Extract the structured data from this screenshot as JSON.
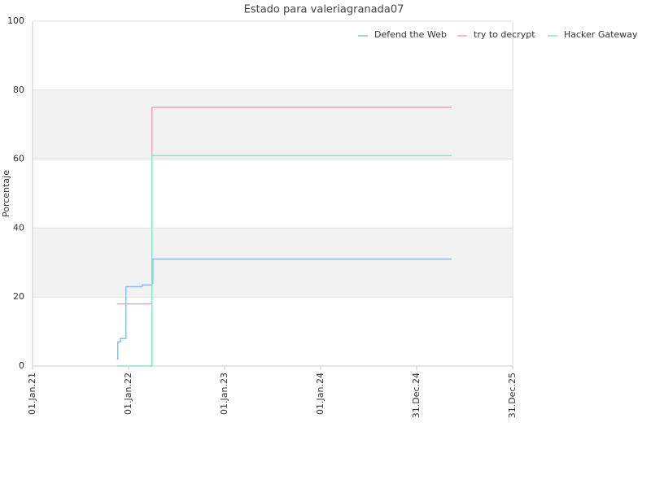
{
  "chart_data": {
    "type": "line",
    "step": "after",
    "title": "Estado para valeriagranada07",
    "y_label": "Porcentaje",
    "xlim": [
      "2021-01-01",
      "2025-12-31"
    ],
    "xticks": [
      {
        "value": "2021-01-01",
        "label": "01.Jan.21"
      },
      {
        "value": "2022-01-01",
        "label": "01.Jan.22"
      },
      {
        "value": "2023-01-01",
        "label": "01.Jan.23"
      },
      {
        "value": "2024-01-01",
        "label": "01.Jan.24"
      },
      {
        "value": "2024-12-31",
        "label": "31.Dec.24"
      },
      {
        "value": "2025-12-31",
        "label": "31.Dec.25"
      }
    ],
    "ylim": [
      0,
      100
    ],
    "yticks": [
      0,
      20,
      40,
      60,
      80,
      100
    ],
    "grid": true,
    "alternate_bands": true,
    "legend": "top-right",
    "series": [
      {
        "name": "Defend the Web",
        "color": "#8cbbe6",
        "x": [
          "2021-11-18",
          "2021-11-21",
          "2021-12-01",
          "2021-12-22",
          "2022-02-22",
          "2022-03-31",
          "2022-04-03",
          "2025-05-13"
        ],
        "values": [
          2,
          7,
          8,
          23,
          23.5,
          24,
          31,
          31
        ]
      },
      {
        "name": "try to decrypt",
        "color": "#f2a2c6",
        "x": [
          "2021-11-18",
          "2022-03-31",
          "2025-05-13"
        ],
        "values": [
          18,
          75,
          75
        ]
      },
      {
        "name": "Hacker Gateway",
        "color": "#88e2c6",
        "x": [
          "2021-11-18",
          "2022-03-31",
          "2025-05-13"
        ],
        "values": [
          0,
          61,
          61
        ]
      }
    ]
  }
}
